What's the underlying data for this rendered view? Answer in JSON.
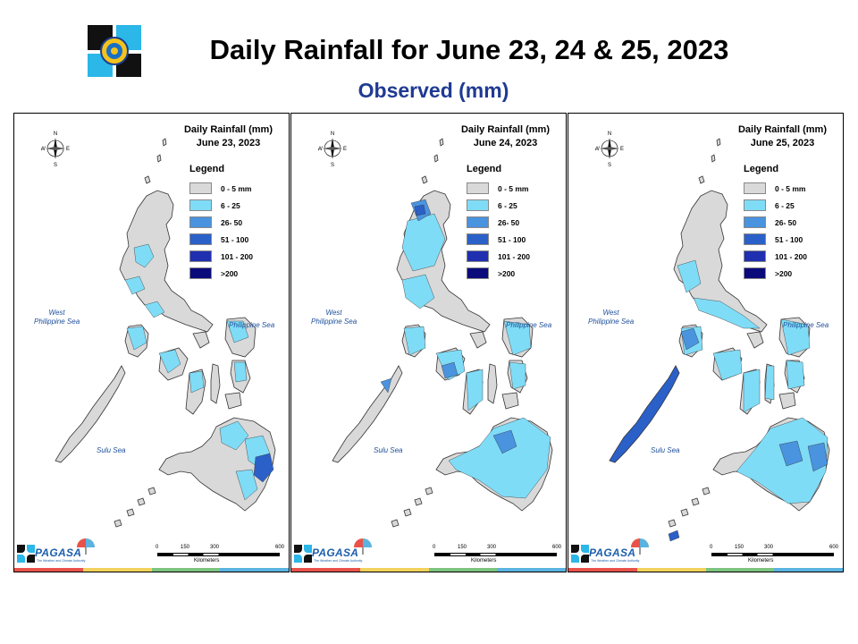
{
  "header": {
    "title": "Daily Rainfall for June 23, 24 & 25, 2023",
    "subtitle": "Observed (mm)"
  },
  "legend": {
    "title": "Legend",
    "items": [
      {
        "label": "0 - 5 mm",
        "color": "#d9d9d9"
      },
      {
        "label": "6 - 25",
        "color": "#7fdcf7"
      },
      {
        "label": "26- 50",
        "color": "#4a93df"
      },
      {
        "label": "51 - 100",
        "color": "#2a60c8"
      },
      {
        "label": "101 - 200",
        "color": "#1f2fb0"
      },
      {
        "label": ">200",
        "color": "#0b0a7a"
      }
    ]
  },
  "map_labels": {
    "west_sea": "West\nPhilippine Sea",
    "east_sea": "Philippine Sea",
    "sulu_sea": "Sulu Sea",
    "compass": {
      "n": "N",
      "s": "S",
      "e": "E",
      "w": "W"
    }
  },
  "scale": {
    "ticks": [
      "0",
      "150",
      "300",
      "600"
    ],
    "unit": "Kilometers"
  },
  "branding": {
    "logo_text": "PAGASA",
    "tagline": "The Weather and Climate Authority"
  },
  "panels": [
    {
      "id": "jun23",
      "title_line1": "Daily Rainfall (mm)",
      "title_line2": "June 23, 2023"
    },
    {
      "id": "jun24",
      "title_line1": "Daily Rainfall (mm)",
      "title_line2": "June 24, 2023"
    },
    {
      "id": "jun25",
      "title_line1": "Daily Rainfall (mm)",
      "title_line2": "June 25, 2023"
    }
  ],
  "colors": {
    "land_outline": "#333333",
    "stripe": [
      "#e8524a",
      "#f2d15c",
      "#7cc47f",
      "#5ab3e0"
    ]
  }
}
